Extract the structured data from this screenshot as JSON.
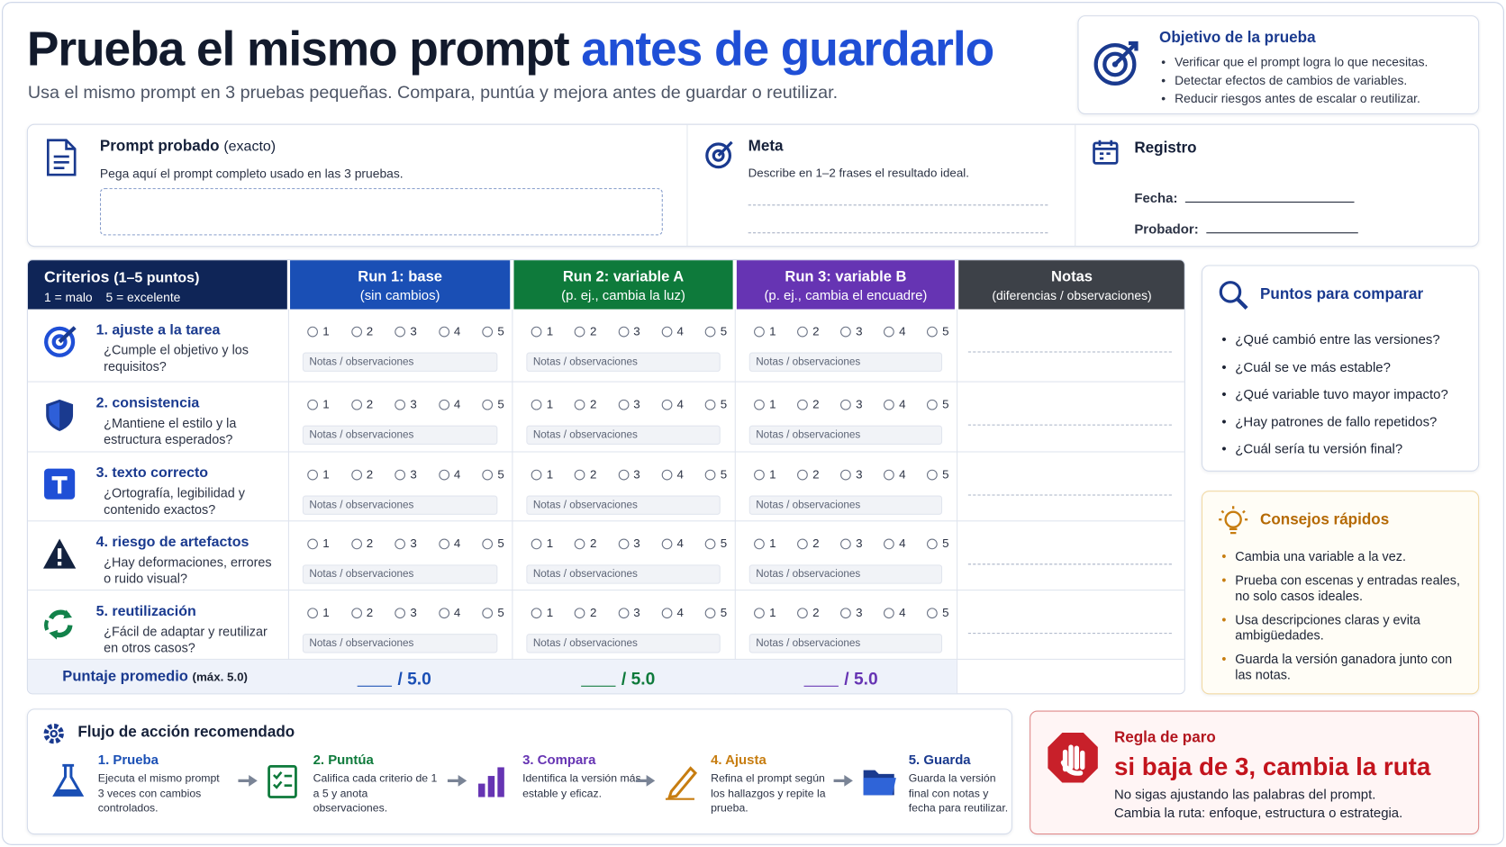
{
  "header": {
    "title_main": "Prueba el mismo prompt",
    "title_accent": "antes de guardarlo",
    "subtitle": "Usa el mismo prompt en 3 pruebas pequeñas. Compara, puntúa y mejora antes de guardar o reutilizar."
  },
  "objective": {
    "title": "Objetivo de la prueba",
    "items": [
      "Verificar que el prompt logra lo que necesitas.",
      "Detectar efectos de cambios de variables.",
      "Reducir riesgos antes de escalar o reutilizar."
    ]
  },
  "prompt": {
    "title": "Prompt probado",
    "qualifier": "(exacto)",
    "hint": "Pega aquí el prompt completo usado en las 3 pruebas."
  },
  "goal": {
    "title": "Meta",
    "hint": "Describe en 1–2 frases el resultado ideal."
  },
  "log": {
    "title": "Registro",
    "fields": [
      "Fecha:",
      "Probador:"
    ]
  },
  "table": {
    "criteria_header": {
      "title": "Criterios",
      "qualifier": "(1–5 puntos)",
      "scale_low": "1 = malo",
      "scale_high": "5 = excelente"
    },
    "runs": [
      {
        "title": "Run 1: base",
        "subtitle": "(sin cambios)",
        "color": "#1a4fb5"
      },
      {
        "title": "Run 2: variable A",
        "subtitle": "(p. ej., cambia la luz)",
        "color": "#0e7a3b"
      },
      {
        "title": "Run 3: variable B",
        "subtitle": "(p. ej., cambia el encuadre)",
        "color": "#6634b3"
      }
    ],
    "notes_header": {
      "title": "Notas",
      "subtitle": "(diferencias / observaciones)"
    },
    "scale": [
      1,
      2,
      3,
      4,
      5
    ],
    "notes_placeholder": "Notas / observaciones",
    "criteria": [
      {
        "label": "1. ajuste a la tarea",
        "question": "¿Cumple el objetivo y los requisitos?"
      },
      {
        "label": "2. consistencia",
        "question": "¿Mantiene el estilo y la estructura esperados?"
      },
      {
        "label": "3. texto correcto",
        "question": "¿Ortografía, legibilidad y contenido exactos?"
      },
      {
        "label": "4. riesgo de artefactos",
        "question": "¿Hay deformaciones, errores o ruido visual?"
      },
      {
        "label": "5. reutilización",
        "question": "¿Fácil de adaptar y reutilizar en otros casos?"
      }
    ],
    "average": {
      "label": "Puntaje promedio",
      "qualifier": "(máx. 5.0)",
      "score": "/ 5.0"
    }
  },
  "compare": {
    "title": "Puntos para comparar",
    "items": [
      "¿Qué cambió entre las versiones?",
      "¿Cuál se ve más estable?",
      "¿Qué variable tuvo mayor impacto?",
      "¿Hay patrones de fallo repetidos?",
      "¿Cuál sería tu versión final?"
    ]
  },
  "tips": {
    "title": "Consejos rápidos",
    "items": [
      "Cambia una variable a la vez.",
      "Prueba con escenas y entradas reales, no solo casos ideales.",
      "Usa descripciones claras y evita ambigüedades.",
      "Guarda la versión ganadora junto con las notas."
    ]
  },
  "flow": {
    "title": "Flujo de acción recomendado",
    "steps": [
      {
        "title": "1. Prueba",
        "text": "Ejecuta el mismo prompt 3 veces con cambios controlados.",
        "color": "#1a4fb5"
      },
      {
        "title": "2. Puntúa",
        "text": "Califica cada criterio de 1 a 5 y anota observaciones.",
        "color": "#0e7a3b"
      },
      {
        "title": "3. Compara",
        "text": "Identifica la versión más estable y eficaz.",
        "color": "#6634b3"
      },
      {
        "title": "4. Ajusta",
        "text": "Refina el prompt según los hallazgos y repite la prueba.",
        "color": "#c77d10"
      },
      {
        "title": "5. Guarda",
        "text": "Guarda la versión final con notas y fecha para reutilizar.",
        "color": "#1a3a8f"
      }
    ]
  },
  "stop": {
    "title": "Regla de paro",
    "headline": "si baja de 3, cambia la ruta",
    "lines": [
      "No sigas ajustando las palabras del prompt.",
      "Cambia la ruta: enfoque, estructura o estrategia."
    ]
  }
}
